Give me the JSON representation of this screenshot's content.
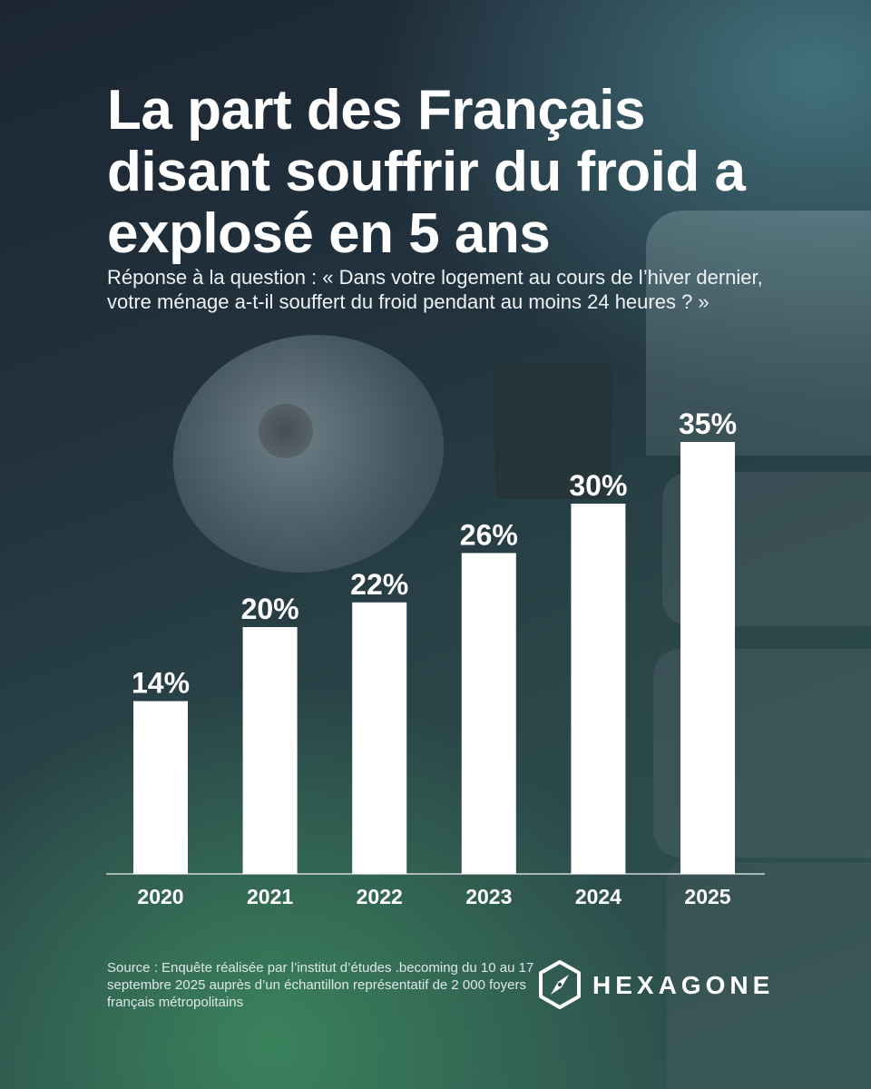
{
  "header": {
    "title": "La part des Français disant souffrir du froid a explosé en 5 ans",
    "subtitle": "Réponse à la question : « Dans votre logement au cours de l’hiver dernier, votre ménage a-t-il souffert du froid pendant au moins 24 heures ? »"
  },
  "chart_data": {
    "type": "bar",
    "categories": [
      "2020",
      "2021",
      "2022",
      "2023",
      "2024",
      "2025"
    ],
    "values": [
      14,
      20,
      22,
      26,
      30,
      35
    ],
    "value_labels": [
      "14%",
      "20%",
      "22%",
      "26%",
      "30%",
      "35%"
    ],
    "title": "",
    "xlabel": "",
    "ylabel": "",
    "ylim": [
      0,
      35
    ],
    "grid": false,
    "bar_color": "#ffffff",
    "axis_color": "#d0d6d8"
  },
  "footer": {
    "source": "Source : Enquête réalisée par l’institut d’études .becoming du 10 au 17 septembre 2025 auprès d’un échantillon représentatif de 2 000 foyers français métropolitains",
    "brand": "HEXAGONE",
    "brand_icon": "compass-hexagon-icon"
  }
}
